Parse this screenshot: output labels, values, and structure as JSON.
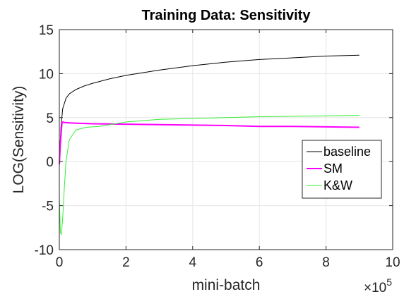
{
  "chart_data": {
    "type": "line",
    "title": "Training Data: Sensitivity",
    "xlabel": "mini-batch",
    "ylabel": "LOG(Sensitivity)",
    "x_exponent_base": "×10",
    "x_exponent_power": "5",
    "xlim": [
      0,
      10
    ],
    "ylim": [
      -10,
      15
    ],
    "xticks": [
      0,
      2,
      4,
      6,
      8,
      10
    ],
    "xtick_labels": [
      "0",
      "2",
      "4",
      "6",
      "8",
      "10"
    ],
    "yticks": [
      -10,
      -5,
      0,
      5,
      10,
      15
    ],
    "ytick_labels": [
      "-10",
      "-5",
      "0",
      "5",
      "10",
      "15"
    ],
    "grid": true,
    "legend_position": "right-middle",
    "series": [
      {
        "name": "baseline",
        "color": "#000000",
        "x": [
          0,
          0.05,
          0.1,
          0.2,
          0.3,
          0.5,
          0.75,
          1,
          1.5,
          2,
          3,
          4,
          5,
          6,
          7,
          8,
          9
        ],
        "y": [
          0,
          4,
          6,
          7.2,
          7.7,
          8.2,
          8.6,
          8.9,
          9.4,
          9.8,
          10.4,
          10.9,
          11.3,
          11.6,
          11.8,
          12,
          12.1
        ]
      },
      {
        "name": "SM",
        "color": "#ff00ff",
        "x": [
          0,
          0.03,
          0.08,
          0.15,
          0.3,
          0.6,
          1,
          2,
          3,
          4,
          5,
          6,
          7,
          8,
          9
        ],
        "y": [
          -0.3,
          2,
          4.5,
          4.45,
          4.4,
          4.35,
          4.3,
          4.25,
          4.2,
          4.15,
          4.1,
          4.0,
          4.0,
          3.95,
          3.9
        ]
      },
      {
        "name": "K&W",
        "color": "#33ee33",
        "x": [
          0,
          0.03,
          0.06,
          0.1,
          0.15,
          0.2,
          0.3,
          0.5,
          0.8,
          1.2,
          2,
          3,
          4,
          5,
          6,
          7,
          8,
          9
        ],
        "y": [
          -4,
          -8,
          -8.3,
          -6.5,
          -3,
          0,
          2.5,
          3.6,
          3.9,
          4.0,
          4.5,
          4.8,
          4.9,
          5.0,
          5.1,
          5.15,
          5.2,
          5.25
        ]
      }
    ]
  },
  "colors": {
    "axis": "#262626",
    "grid": "#e6e6e6",
    "background": "#ffffff"
  }
}
